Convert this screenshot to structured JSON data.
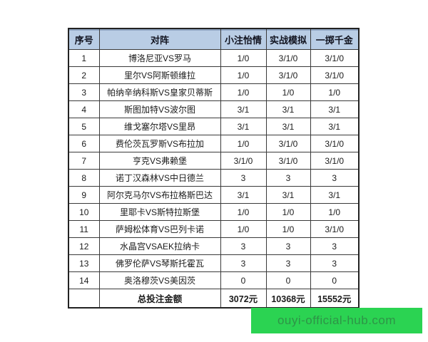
{
  "chart_data": {
    "type": "table",
    "columns": [
      "序号",
      "对阵",
      "小注怡情",
      "实战模拟",
      "一掷千金"
    ],
    "rows": [
      [
        "1",
        "博洛尼亚VS罗马",
        "1/0",
        "3/1/0",
        "3/1/0"
      ],
      [
        "2",
        "里尔VS阿斯顿维拉",
        "1/0",
        "3/1/0",
        "3/1/0"
      ],
      [
        "3",
        "帕纳辛纳科斯VS皇家贝蒂斯",
        "1/0",
        "1/0",
        "1/0"
      ],
      [
        "4",
        "斯图加特VS波尔图",
        "3/1",
        "3/1",
        "3/1"
      ],
      [
        "5",
        "维戈塞尔塔VS里昂",
        "3/1",
        "3/1",
        "3/1"
      ],
      [
        "6",
        "费伦茨瓦罗斯VS布拉加",
        "1/0",
        "3/1/0",
        "3/1/0"
      ],
      [
        "7",
        "亨克VS弗赖堡",
        "3/1/0",
        "3/1/0",
        "3/1/0"
      ],
      [
        "8",
        "诺丁汉森林VS中日德兰",
        "3",
        "3",
        "3"
      ],
      [
        "9",
        "阿尔克马尔VS布拉格斯巴达",
        "3/1",
        "3/1",
        "3/1"
      ],
      [
        "10",
        "里耶卡VS斯特拉斯堡",
        "1/0",
        "1/0",
        "1/0"
      ],
      [
        "11",
        "萨姆松体育VS巴列卡诺",
        "1/0",
        "1/0",
        "3/1/0"
      ],
      [
        "12",
        "水晶宫VSAEK拉纳卡",
        "3",
        "3",
        "3"
      ],
      [
        "13",
        "佛罗伦萨VS琴斯托霍瓦",
        "3",
        "3",
        "3"
      ],
      [
        "14",
        "奥洛穆茨VS美因茨",
        "0",
        "0",
        "0"
      ]
    ],
    "total_row": [
      "",
      "总投注金额",
      "3072元",
      "10368元",
      "15552元"
    ],
    "title": "",
    "legend": [],
    "grid": "on"
  },
  "watermark": {
    "text": "ouyi-official-hub.com"
  },
  "colors": {
    "header_bg": "#b9cde5",
    "table_border": "#222222",
    "cell_border": "#3a3a3a",
    "watermark_bg": "#2bd352",
    "watermark_text": "#2e9447"
  }
}
